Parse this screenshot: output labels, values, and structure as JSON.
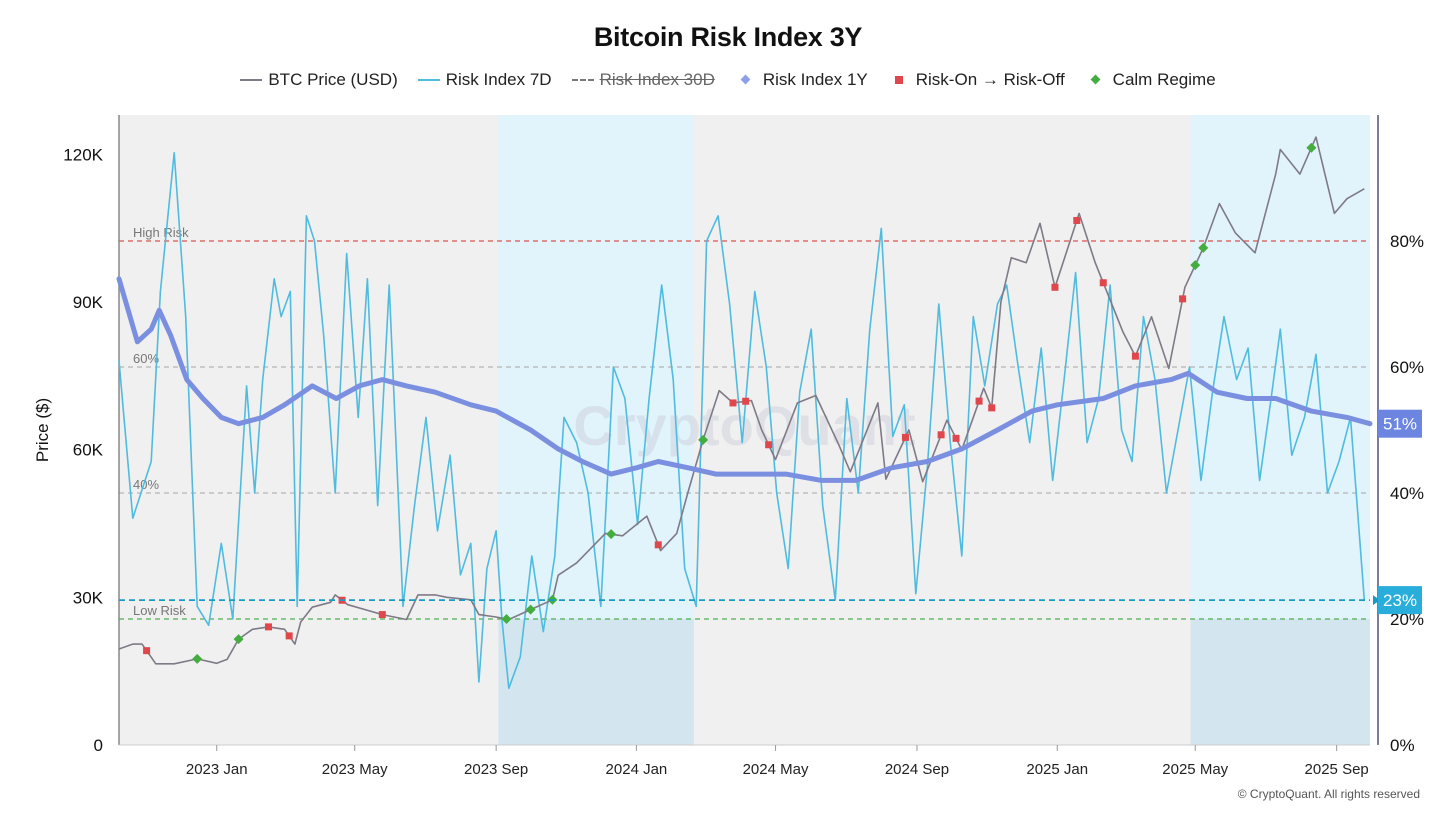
{
  "chart_data": {
    "type": "line",
    "title": "Bitcoin Risk Index 3Y",
    "ylabel": "Price ($)",
    "y_left": {
      "ticks": [
        0,
        30000,
        60000,
        90000,
        120000
      ],
      "tick_labels": [
        "0",
        "30K",
        "60K",
        "90K",
        "120K"
      ],
      "lim": [
        0,
        128000
      ]
    },
    "y_right": {
      "ticks": [
        0,
        20,
        40,
        60,
        80
      ],
      "tick_labels": [
        "0%",
        "20%",
        "40%",
        "60%",
        "80%"
      ],
      "lim": [
        0,
        100
      ]
    },
    "x_ticks": [
      {
        "date": "2023-01-01",
        "label": "2023 Jan"
      },
      {
        "date": "2023-05-01",
        "label": "2023 May"
      },
      {
        "date": "2023-09-01",
        "label": "2023 Sep"
      },
      {
        "date": "2024-01-01",
        "label": "2024 Jan"
      },
      {
        "date": "2024-05-01",
        "label": "2024 May"
      },
      {
        "date": "2024-09-01",
        "label": "2024 Sep"
      },
      {
        "date": "2025-01-01",
        "label": "2025 Jan"
      },
      {
        "date": "2025-05-01",
        "label": "2025 May"
      },
      {
        "date": "2025-09-01",
        "label": "2025 Sep"
      }
    ],
    "x_range": [
      "2022-10-08",
      "2025-09-30"
    ],
    "legend": {
      "position": "top"
    },
    "series": [
      {
        "name": "BTC Price (USD)",
        "axis": "left",
        "color": "#7f7a87",
        "points": [
          [
            "2022-10-08",
            19500
          ],
          [
            "2022-10-20",
            20500
          ],
          [
            "2022-10-28",
            20500
          ],
          [
            "2022-11-09",
            16500
          ],
          [
            "2022-11-25",
            16500
          ],
          [
            "2022-12-15",
            17500
          ],
          [
            "2023-01-01",
            16600
          ],
          [
            "2023-01-10",
            17400
          ],
          [
            "2023-01-20",
            21500
          ],
          [
            "2023-02-01",
            23500
          ],
          [
            "2023-02-15",
            24000
          ],
          [
            "2023-03-01",
            23500
          ],
          [
            "2023-03-10",
            20500
          ],
          [
            "2023-03-15",
            25000
          ],
          [
            "2023-03-25",
            28000
          ],
          [
            "2023-04-10",
            29000
          ],
          [
            "2023-04-14",
            30500
          ],
          [
            "2023-04-25",
            28500
          ],
          [
            "2023-05-10",
            27500
          ],
          [
            "2023-05-25",
            26500
          ],
          [
            "2023-06-15",
            25500
          ],
          [
            "2023-06-25",
            30500
          ],
          [
            "2023-07-10",
            30500
          ],
          [
            "2023-07-20",
            30000
          ],
          [
            "2023-08-10",
            29500
          ],
          [
            "2023-08-17",
            26500
          ],
          [
            "2023-09-01",
            26000
          ],
          [
            "2023-09-12",
            25500
          ],
          [
            "2023-10-01",
            27500
          ],
          [
            "2023-10-20",
            29500
          ],
          [
            "2023-10-25",
            34500
          ],
          [
            "2023-11-10",
            37000
          ],
          [
            "2023-12-05",
            43000
          ],
          [
            "2023-12-20",
            42500
          ],
          [
            "2024-01-10",
            46500
          ],
          [
            "2024-01-22",
            39500
          ],
          [
            "2024-02-05",
            43000
          ],
          [
            "2024-02-15",
            51500
          ],
          [
            "2024-02-28",
            62000
          ],
          [
            "2024-03-13",
            72000
          ],
          [
            "2024-03-25",
            69500
          ],
          [
            "2024-04-10",
            70000
          ],
          [
            "2024-04-19",
            64000
          ],
          [
            "2024-05-01",
            58000
          ],
          [
            "2024-05-20",
            69500
          ],
          [
            "2024-06-05",
            71000
          ],
          [
            "2024-06-25",
            61000
          ],
          [
            "2024-07-05",
            55500
          ],
          [
            "2024-07-29",
            69500
          ],
          [
            "2024-08-05",
            54000
          ],
          [
            "2024-08-25",
            64000
          ],
          [
            "2024-09-06",
            53500
          ],
          [
            "2024-09-27",
            66000
          ],
          [
            "2024-10-10",
            60000
          ],
          [
            "2024-10-29",
            72500
          ],
          [
            "2024-11-05",
            68500
          ],
          [
            "2024-11-13",
            90000
          ],
          [
            "2024-11-22",
            99000
          ],
          [
            "2024-12-05",
            98000
          ],
          [
            "2024-12-17",
            106000
          ],
          [
            "2024-12-30",
            93000
          ],
          [
            "2025-01-20",
            108000
          ],
          [
            "2025-02-03",
            98000
          ],
          [
            "2025-02-27",
            84000
          ],
          [
            "2025-03-10",
            79000
          ],
          [
            "2025-03-24",
            87000
          ],
          [
            "2025-04-08",
            76500
          ],
          [
            "2025-04-22",
            93000
          ],
          [
            "2025-05-08",
            101000
          ],
          [
            "2025-05-22",
            110000
          ],
          [
            "2025-06-05",
            104000
          ],
          [
            "2025-06-22",
            100000
          ],
          [
            "2025-07-10",
            116000
          ],
          [
            "2025-07-14",
            121000
          ],
          [
            "2025-07-31",
            116000
          ],
          [
            "2025-08-14",
            123500
          ],
          [
            "2025-08-30",
            108000
          ],
          [
            "2025-09-10",
            111000
          ],
          [
            "2025-09-25",
            113000
          ]
        ]
      },
      {
        "name": "Risk Index 7D",
        "axis": "right",
        "color": "#4fbcdf",
        "points": [
          [
            "2022-10-08",
            61
          ],
          [
            "2022-10-20",
            36
          ],
          [
            "2022-11-05",
            45
          ],
          [
            "2022-11-13",
            72
          ],
          [
            "2022-11-25",
            94
          ],
          [
            "2022-12-05",
            68
          ],
          [
            "2022-12-15",
            22
          ],
          [
            "2022-12-25",
            19
          ],
          [
            "2023-01-05",
            32
          ],
          [
            "2023-01-15",
            20
          ],
          [
            "2023-01-27",
            57
          ],
          [
            "2023-02-03",
            40
          ],
          [
            "2023-02-10",
            58
          ],
          [
            "2023-02-20",
            74
          ],
          [
            "2023-02-26",
            68
          ],
          [
            "2023-03-06",
            72
          ],
          [
            "2023-03-12",
            22
          ],
          [
            "2023-03-20",
            84
          ],
          [
            "2023-03-27",
            80
          ],
          [
            "2023-04-04",
            65
          ],
          [
            "2023-04-14",
            40
          ],
          [
            "2023-04-24",
            78
          ],
          [
            "2023-05-04",
            52
          ],
          [
            "2023-05-12",
            74
          ],
          [
            "2023-05-21",
            38
          ],
          [
            "2023-05-31",
            73
          ],
          [
            "2023-06-12",
            22
          ],
          [
            "2023-06-22",
            38
          ],
          [
            "2023-07-02",
            52
          ],
          [
            "2023-07-12",
            34
          ],
          [
            "2023-07-23",
            46
          ],
          [
            "2023-08-01",
            27
          ],
          [
            "2023-08-10",
            32
          ],
          [
            "2023-08-17",
            10
          ],
          [
            "2023-08-24",
            28
          ],
          [
            "2023-09-01",
            34
          ],
          [
            "2023-09-06",
            20
          ],
          [
            "2023-09-12",
            9
          ],
          [
            "2023-09-22",
            14
          ],
          [
            "2023-10-02",
            30
          ],
          [
            "2023-10-12",
            18
          ],
          [
            "2023-10-22",
            30
          ],
          [
            "2023-10-30",
            52
          ],
          [
            "2023-11-10",
            48
          ],
          [
            "2023-11-20",
            40
          ],
          [
            "2023-12-01",
            22
          ],
          [
            "2023-12-12",
            60
          ],
          [
            "2023-12-22",
            55
          ],
          [
            "2024-01-02",
            35
          ],
          [
            "2024-01-12",
            55
          ],
          [
            "2024-01-23",
            73
          ],
          [
            "2024-02-02",
            58
          ],
          [
            "2024-02-12",
            28
          ],
          [
            "2024-02-22",
            22
          ],
          [
            "2024-03-02",
            80
          ],
          [
            "2024-03-12",
            84
          ],
          [
            "2024-03-22",
            70
          ],
          [
            "2024-04-02",
            48
          ],
          [
            "2024-04-13",
            72
          ],
          [
            "2024-04-23",
            60
          ],
          [
            "2024-05-02",
            40
          ],
          [
            "2024-05-12",
            28
          ],
          [
            "2024-05-22",
            56
          ],
          [
            "2024-06-01",
            66
          ],
          [
            "2024-06-11",
            38
          ],
          [
            "2024-06-22",
            23
          ],
          [
            "2024-07-02",
            55
          ],
          [
            "2024-07-12",
            40
          ],
          [
            "2024-07-22",
            66
          ],
          [
            "2024-08-01",
            82
          ],
          [
            "2024-08-11",
            49
          ],
          [
            "2024-08-21",
            54
          ],
          [
            "2024-08-31",
            24
          ],
          [
            "2024-09-10",
            44
          ],
          [
            "2024-09-20",
            70
          ],
          [
            "2024-09-30",
            48
          ],
          [
            "2024-10-10",
            30
          ],
          [
            "2024-10-20",
            68
          ],
          [
            "2024-10-30",
            57
          ],
          [
            "2024-11-10",
            70
          ],
          [
            "2024-11-18",
            73
          ],
          [
            "2024-11-28",
            60
          ],
          [
            "2024-12-08",
            48
          ],
          [
            "2024-12-18",
            63
          ],
          [
            "2024-12-28",
            42
          ],
          [
            "2025-01-07",
            58
          ],
          [
            "2025-01-17",
            75
          ],
          [
            "2025-01-27",
            48
          ],
          [
            "2025-02-06",
            55
          ],
          [
            "2025-02-16",
            73
          ],
          [
            "2025-02-26",
            50
          ],
          [
            "2025-03-07",
            45
          ],
          [
            "2025-03-17",
            68
          ],
          [
            "2025-03-27",
            58
          ],
          [
            "2025-04-06",
            40
          ],
          [
            "2025-04-16",
            50
          ],
          [
            "2025-04-26",
            60
          ],
          [
            "2025-05-06",
            42
          ],
          [
            "2025-05-16",
            56
          ],
          [
            "2025-05-26",
            68
          ],
          [
            "2025-06-06",
            58
          ],
          [
            "2025-06-16",
            63
          ],
          [
            "2025-06-26",
            42
          ],
          [
            "2025-07-06",
            55
          ],
          [
            "2025-07-14",
            66
          ],
          [
            "2025-07-24",
            46
          ],
          [
            "2025-08-04",
            52
          ],
          [
            "2025-08-14",
            62
          ],
          [
            "2025-08-24",
            40
          ],
          [
            "2025-09-03",
            45
          ],
          [
            "2025-09-13",
            52
          ],
          [
            "2025-09-25",
            23
          ]
        ]
      },
      {
        "name": "Risk Index 1Y",
        "axis": "right",
        "color": "#7b8fe0",
        "points": [
          [
            "2022-10-08",
            74
          ],
          [
            "2022-10-24",
            64
          ],
          [
            "2022-11-05",
            66
          ],
          [
            "2022-11-12",
            69
          ],
          [
            "2022-11-22",
            65
          ],
          [
            "2022-12-06",
            58
          ],
          [
            "2022-12-20",
            55
          ],
          [
            "2023-01-05",
            52
          ],
          [
            "2023-01-20",
            51
          ],
          [
            "2023-02-10",
            52
          ],
          [
            "2023-03-01",
            54
          ],
          [
            "2023-03-25",
            57
          ],
          [
            "2023-04-15",
            55
          ],
          [
            "2023-05-05",
            57
          ],
          [
            "2023-05-25",
            58
          ],
          [
            "2023-06-15",
            57
          ],
          [
            "2023-07-10",
            56
          ],
          [
            "2023-08-10",
            54
          ],
          [
            "2023-09-01",
            53
          ],
          [
            "2023-10-01",
            50
          ],
          [
            "2023-10-25",
            47
          ],
          [
            "2023-11-15",
            45
          ],
          [
            "2023-12-10",
            43
          ],
          [
            "2024-01-01",
            44
          ],
          [
            "2024-01-20",
            45
          ],
          [
            "2024-02-15",
            44
          ],
          [
            "2024-03-10",
            43
          ],
          [
            "2024-04-10",
            43
          ],
          [
            "2024-05-10",
            43
          ],
          [
            "2024-06-10",
            42
          ],
          [
            "2024-07-10",
            42
          ],
          [
            "2024-08-10",
            44
          ],
          [
            "2024-09-10",
            45
          ],
          [
            "2024-10-10",
            47
          ],
          [
            "2024-11-10",
            50
          ],
          [
            "2024-12-10",
            53
          ],
          [
            "2025-01-01",
            54
          ],
          [
            "2025-02-10",
            55
          ],
          [
            "2025-03-10",
            57
          ],
          [
            "2025-04-10",
            58
          ],
          [
            "2025-04-25",
            59
          ],
          [
            "2025-05-20",
            56
          ],
          [
            "2025-06-15",
            55
          ],
          [
            "2025-07-10",
            55
          ],
          [
            "2025-08-10",
            53
          ],
          [
            "2025-09-10",
            52
          ],
          [
            "2025-09-30",
            51
          ]
        ]
      }
    ],
    "hidden_series": [
      {
        "name": "Risk Index 30D",
        "hidden": true
      }
    ],
    "events": [
      {
        "name": "Risk-On → Risk-Off",
        "color": "#e0474c",
        "dates": [
          "2022-11-01",
          "2023-02-15",
          "2023-03-05",
          "2023-04-20",
          "2023-05-25",
          "2024-01-20",
          "2024-03-25",
          "2024-04-05",
          "2024-04-25",
          "2024-08-22",
          "2024-09-22",
          "2024-10-05",
          "2024-10-25",
          "2024-11-05",
          "2024-12-30",
          "2025-01-18",
          "2025-02-10",
          "2025-03-10",
          "2025-04-20"
        ]
      },
      {
        "name": "Calm Regime",
        "color": "#45ad3f",
        "dates": [
          "2022-12-15",
          "2023-01-20",
          "2023-09-10",
          "2023-10-01",
          "2023-10-20",
          "2023-12-10",
          "2024-02-28",
          "2025-05-01",
          "2025-05-08",
          "2025-08-10"
        ]
      }
    ],
    "reference_lines": [
      {
        "label": "High Risk",
        "value": 80,
        "color": "#d9534f"
      },
      {
        "label": "60%",
        "value": 60,
        "color": "#b5b5b5"
      },
      {
        "label": "40%",
        "value": 40,
        "color": "#b5b5b5"
      },
      {
        "label": "Low Risk",
        "value": 20,
        "color": "#4caf50"
      }
    ],
    "shaded_regions": [
      {
        "start": "2023-09-03",
        "end": "2024-02-20"
      },
      {
        "start": "2025-04-27",
        "end": "2025-09-30"
      }
    ],
    "current_values": [
      {
        "label": "51%",
        "value": 51,
        "color": "#6b85e0"
      },
      {
        "label": "23%",
        "value": 23,
        "color": "#29aedb"
      }
    ],
    "watermark": "CryptoQuant",
    "credit": "© CryptoQuant. All rights reserved"
  }
}
